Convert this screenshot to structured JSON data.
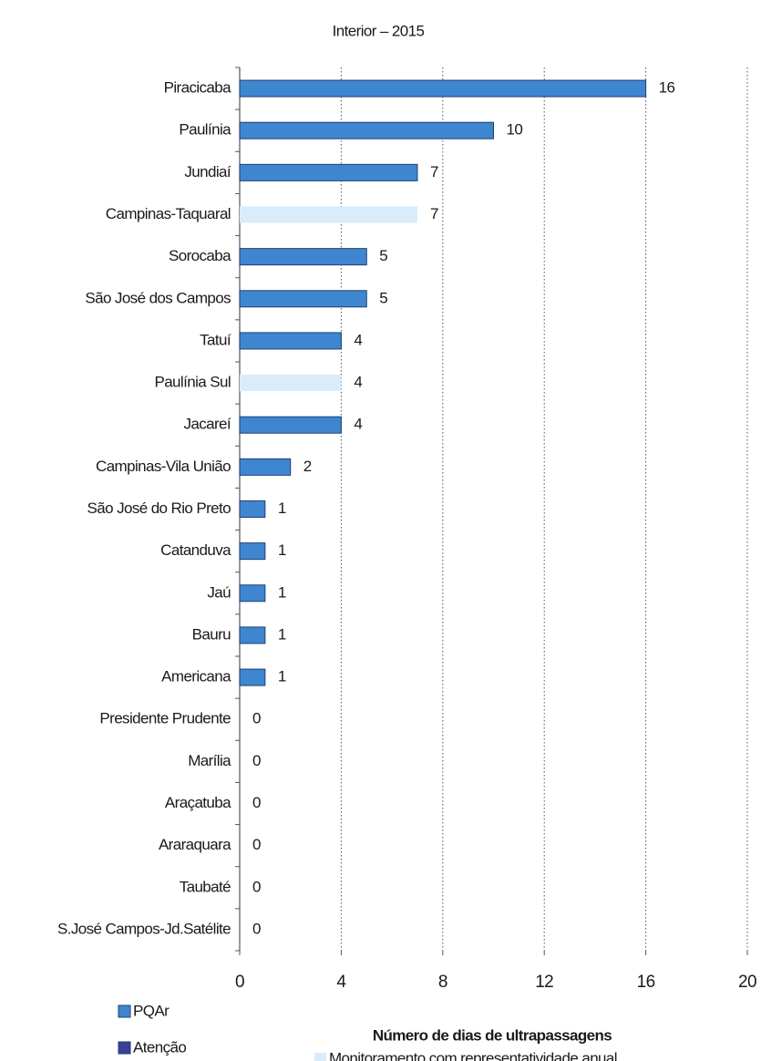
{
  "chart_data": {
    "type": "barh",
    "title": "Interior – 2015",
    "x_label": "Número de dias de ultrapassagens",
    "categories": [
      "Piracicaba",
      "Paulínia",
      "Jundiaí",
      "Campinas-Taquaral",
      "Sorocaba",
      "São José dos Campos",
      "Tatuí",
      "Paulínia Sul",
      "Jacareí",
      "Campinas-Vila União",
      "São José do Rio Preto",
      "Catanduva",
      "Jaú",
      "Bauru",
      "Americana",
      "Presidente Prudente",
      "Marília",
      "Araçatuba",
      "Araraquara",
      "Taubaté",
      "S.José Campos-Jd.Satélite"
    ],
    "values": [
      16,
      10,
      7,
      7,
      5,
      5,
      4,
      4,
      4,
      2,
      1,
      1,
      1,
      1,
      1,
      0,
      0,
      0,
      0,
      0,
      0
    ],
    "bar_colors": [
      "#3f86d0",
      "#3f86d0",
      "#3f86d0",
      "#d8ecfb",
      "#3f86d0",
      "#3f86d0",
      "#3f86d0",
      "#d8ecfb",
      "#3f86d0",
      "#3f86d0",
      "#3f86d0",
      "#3f86d0",
      "#3f86d0",
      "#3f86d0",
      "#3f86d0",
      "#3f86d0",
      "#3f86d0",
      "#3f86d0",
      "#3f86d0",
      "#3f86d0",
      "#3f86d0"
    ],
    "xlim": [
      0,
      20
    ],
    "xticks": [
      0,
      4,
      8,
      12,
      16,
      20
    ],
    "grid": true,
    "legend": [
      {
        "name": "PQAr",
        "color": "#3f86d0"
      },
      {
        "name": "Atenção",
        "color": "#3a3f9a"
      },
      {
        "name": "Monitoramento com representatividade anual",
        "color": "#d8ecfb"
      }
    ]
  }
}
